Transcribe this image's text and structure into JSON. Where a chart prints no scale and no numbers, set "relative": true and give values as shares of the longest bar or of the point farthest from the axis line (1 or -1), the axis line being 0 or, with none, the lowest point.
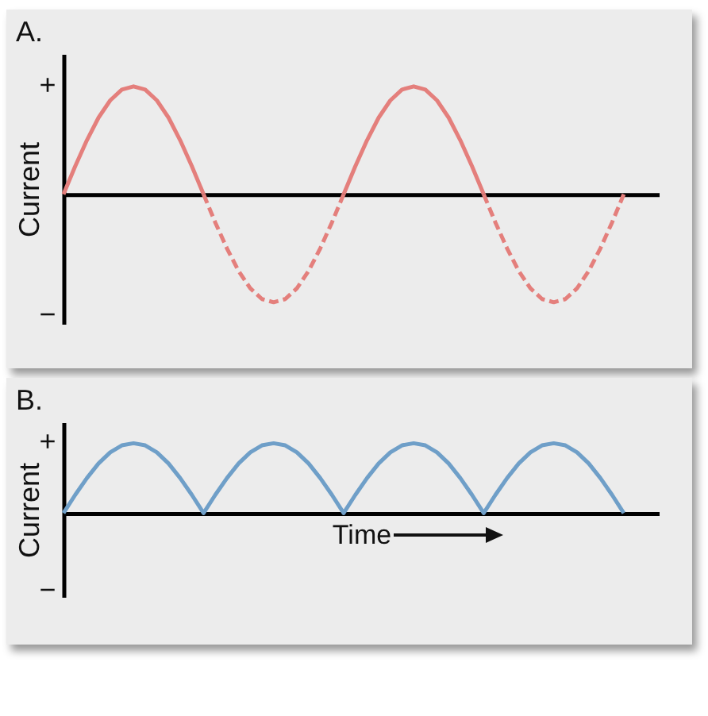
{
  "chart_data": [
    {
      "type": "line",
      "title": "A.",
      "ylabel": "Current",
      "relative": true,
      "annotations": [
        "+",
        "−"
      ],
      "categories": [
        null,
        null,
        null,
        null,
        null,
        null,
        null,
        null,
        null,
        null,
        null,
        null,
        null,
        null,
        null,
        null,
        null,
        null,
        null,
        null,
        null,
        null,
        null,
        null,
        null,
        null,
        null,
        null,
        null,
        null,
        null,
        null,
        null,
        null,
        null,
        null,
        null,
        null,
        null,
        null,
        null,
        null,
        null,
        null,
        null,
        null,
        null,
        null,
        null,
        null,
        null,
        null
      ],
      "series": [
        {
          "color": "#e47f7c",
          "line_style": "solid",
          "values": [
            0,
            0.26,
            0.5,
            0.71,
            0.87,
            0.97,
            1,
            0.97,
            0.87,
            0.71,
            0.5,
            0.26,
            0,
            null,
            null,
            null,
            null,
            null,
            null,
            null,
            null,
            null,
            null,
            null,
            null,
            null,
            null,
            null,
            null,
            null,
            null,
            null,
            null,
            null,
            null,
            null,
            null,
            null,
            null,
            null,
            null,
            null,
            null,
            null,
            null,
            null,
            null,
            null,
            null,
            null,
            null,
            null
          ]
        },
        {
          "color": "#e47f7c",
          "line_style": "dashed",
          "values": [
            null,
            null,
            null,
            null,
            null,
            null,
            null,
            null,
            null,
            null,
            null,
            null,
            0,
            -0.26,
            -0.5,
            -0.71,
            -0.87,
            -0.97,
            -1,
            -0.97,
            -0.87,
            -0.71,
            -0.5,
            -0.26,
            0,
            null,
            null,
            null,
            null,
            null,
            null,
            null,
            null,
            null,
            null,
            null,
            null,
            null,
            null,
            null,
            null,
            null,
            null,
            null,
            null,
            null,
            null,
            null,
            null,
            null,
            null,
            null
          ]
        },
        {
          "color": "#e47f7c",
          "line_style": "solid",
          "values": [
            null,
            null,
            null,
            null,
            null,
            null,
            null,
            null,
            null,
            null,
            null,
            null,
            null,
            null,
            null,
            null,
            null,
            null,
            null,
            null,
            null,
            null,
            null,
            null,
            0,
            0.26,
            0.5,
            0.71,
            0.87,
            0.97,
            1,
            0.97,
            0.87,
            0.71,
            0.5,
            0.26,
            0,
            null,
            null,
            null,
            null,
            null,
            null,
            null,
            null,
            null,
            null,
            null,
            null,
            null,
            null,
            null
          ]
        },
        {
          "color": "#e47f7c",
          "line_style": "dashed",
          "values": [
            null,
            null,
            null,
            null,
            null,
            null,
            null,
            null,
            null,
            null,
            null,
            null,
            null,
            null,
            null,
            null,
            null,
            null,
            null,
            null,
            null,
            null,
            null,
            null,
            null,
            null,
            null,
            null,
            null,
            null,
            null,
            null,
            null,
            null,
            null,
            null,
            0,
            -0.26,
            -0.5,
            -0.71,
            -0.87,
            -0.97,
            -1,
            -0.97,
            -0.87,
            -0.71,
            -0.5,
            -0.26,
            0,
            null,
            null,
            null
          ]
        }
      ]
    },
    {
      "type": "line",
      "title": "B.",
      "ylabel": "Current",
      "xlabel": "Time",
      "relative": true,
      "annotations": [
        "+",
        "−"
      ],
      "categories": [
        null,
        null,
        null,
        null,
        null,
        null,
        null,
        null,
        null,
        null,
        null,
        null,
        null,
        null,
        null,
        null,
        null,
        null,
        null,
        null,
        null,
        null,
        null,
        null,
        null,
        null,
        null,
        null,
        null,
        null,
        null,
        null,
        null,
        null,
        null,
        null,
        null,
        null,
        null,
        null,
        null,
        null,
        null,
        null,
        null,
        null,
        null,
        null,
        null,
        null,
        null,
        null
      ],
      "series": [
        {
          "color": "#6f9fc8",
          "line_style": "solid",
          "values": [
            0,
            0.26,
            0.5,
            0.71,
            0.87,
            0.97,
            1,
            0.97,
            0.87,
            0.71,
            0.5,
            0.26,
            0,
            0.26,
            0.5,
            0.71,
            0.87,
            0.97,
            1,
            0.97,
            0.87,
            0.71,
            0.5,
            0.26,
            0,
            0.26,
            0.5,
            0.71,
            0.87,
            0.97,
            1,
            0.97,
            0.87,
            0.71,
            0.5,
            0.26,
            0,
            0.26,
            0.5,
            0.71,
            0.87,
            0.97,
            1,
            0.97,
            0.87,
            0.71,
            0.5,
            0.26,
            0,
            null,
            null,
            null
          ]
        }
      ]
    }
  ]
}
